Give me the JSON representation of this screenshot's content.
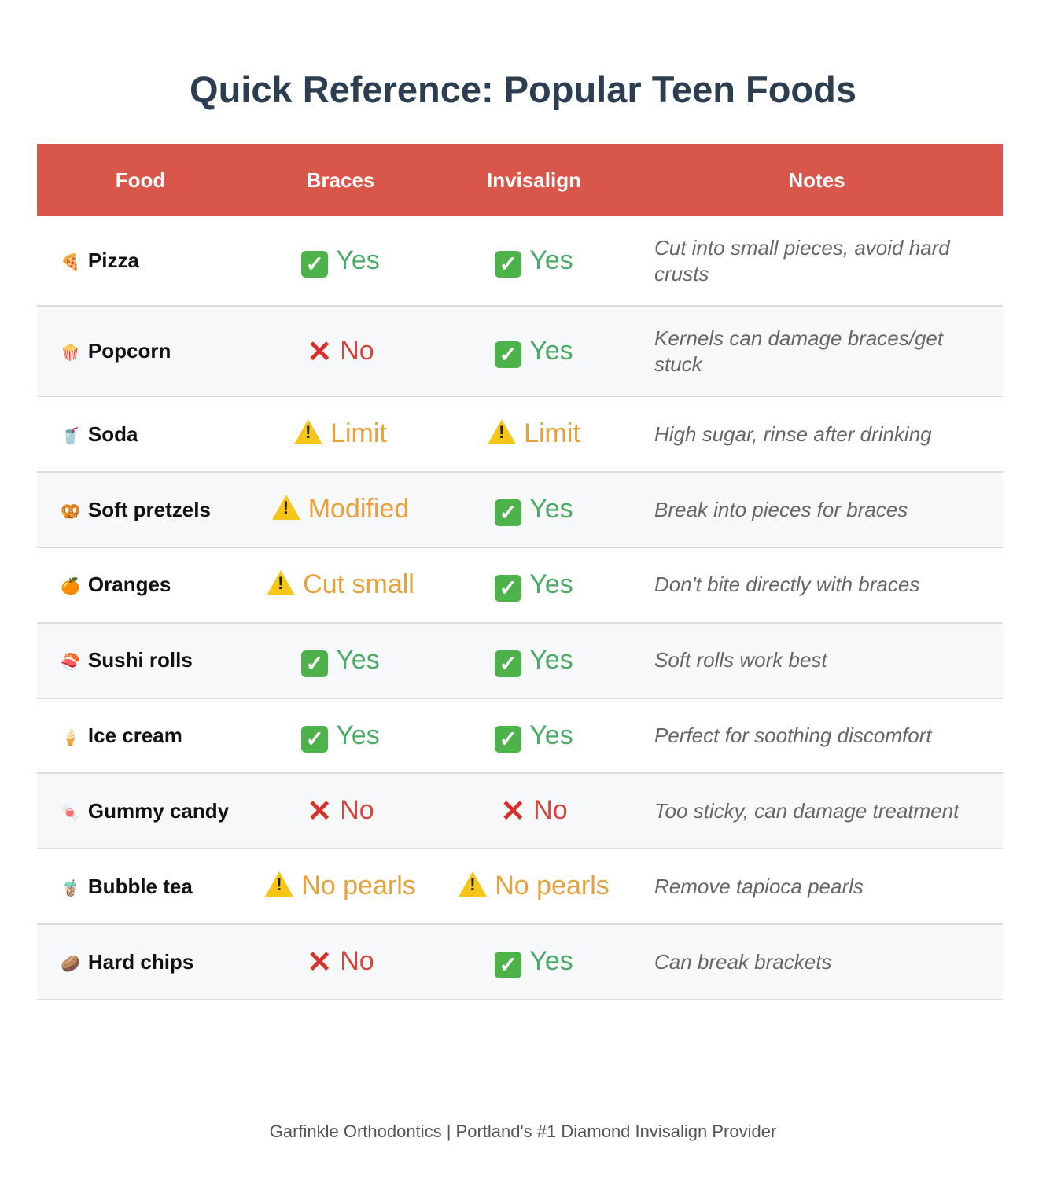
{
  "title": "Quick Reference: Popular Teen Foods",
  "colors": {
    "header": "#d9574a",
    "yes": "#4caa66",
    "no": "#d8453a",
    "warn": "#e8a13a"
  },
  "columns": [
    "Food",
    "Braces",
    "Invisalign",
    "Notes"
  ],
  "rows": [
    {
      "emoji": "🍕",
      "food": "Pizza",
      "braces": {
        "status": "yes",
        "label": "Yes"
      },
      "invisalign": {
        "status": "yes",
        "label": "Yes"
      },
      "notes": "Cut into small pieces, avoid hard crusts"
    },
    {
      "emoji": "🍿",
      "food": "Popcorn",
      "braces": {
        "status": "no",
        "label": "No"
      },
      "invisalign": {
        "status": "yes",
        "label": "Yes"
      },
      "notes": "Kernels can damage braces/get stuck"
    },
    {
      "emoji": "🥤",
      "food": "Soda",
      "braces": {
        "status": "warn",
        "label": "Limit"
      },
      "invisalign": {
        "status": "warn",
        "label": "Limit"
      },
      "notes": "High sugar, rinse after drinking"
    },
    {
      "emoji": "🥨",
      "food": "Soft pretzels",
      "braces": {
        "status": "warn",
        "label": "Modified"
      },
      "invisalign": {
        "status": "yes",
        "label": "Yes"
      },
      "notes": "Break into pieces for braces"
    },
    {
      "emoji": "🍊",
      "food": "Oranges",
      "braces": {
        "status": "warn",
        "label": "Cut small"
      },
      "invisalign": {
        "status": "yes",
        "label": "Yes"
      },
      "notes": "Don't bite directly with braces"
    },
    {
      "emoji": "🍣",
      "food": "Sushi rolls",
      "braces": {
        "status": "yes",
        "label": "Yes"
      },
      "invisalign": {
        "status": "yes",
        "label": "Yes"
      },
      "notes": "Soft rolls work best"
    },
    {
      "emoji": "🍦",
      "food": "Ice cream",
      "braces": {
        "status": "yes",
        "label": "Yes"
      },
      "invisalign": {
        "status": "yes",
        "label": "Yes"
      },
      "notes": "Perfect for soothing discomfort"
    },
    {
      "emoji": "🍬",
      "food": "Gummy candy",
      "braces": {
        "status": "no",
        "label": "No"
      },
      "invisalign": {
        "status": "no",
        "label": "No"
      },
      "notes": "Too sticky, can damage treatment"
    },
    {
      "emoji": "🧋",
      "food": "Bubble tea",
      "braces": {
        "status": "warn",
        "label": "No pearls"
      },
      "invisalign": {
        "status": "warn",
        "label": "No pearls"
      },
      "notes": "Remove tapioca pearls"
    },
    {
      "emoji": "🥔",
      "food": "Hard chips",
      "braces": {
        "status": "no",
        "label": "No"
      },
      "invisalign": {
        "status": "yes",
        "label": "Yes"
      },
      "notes": "Can break brackets"
    }
  ],
  "footer": "Garfinkle Orthodontics | Portland's #1 Diamond Invisalign Provider"
}
